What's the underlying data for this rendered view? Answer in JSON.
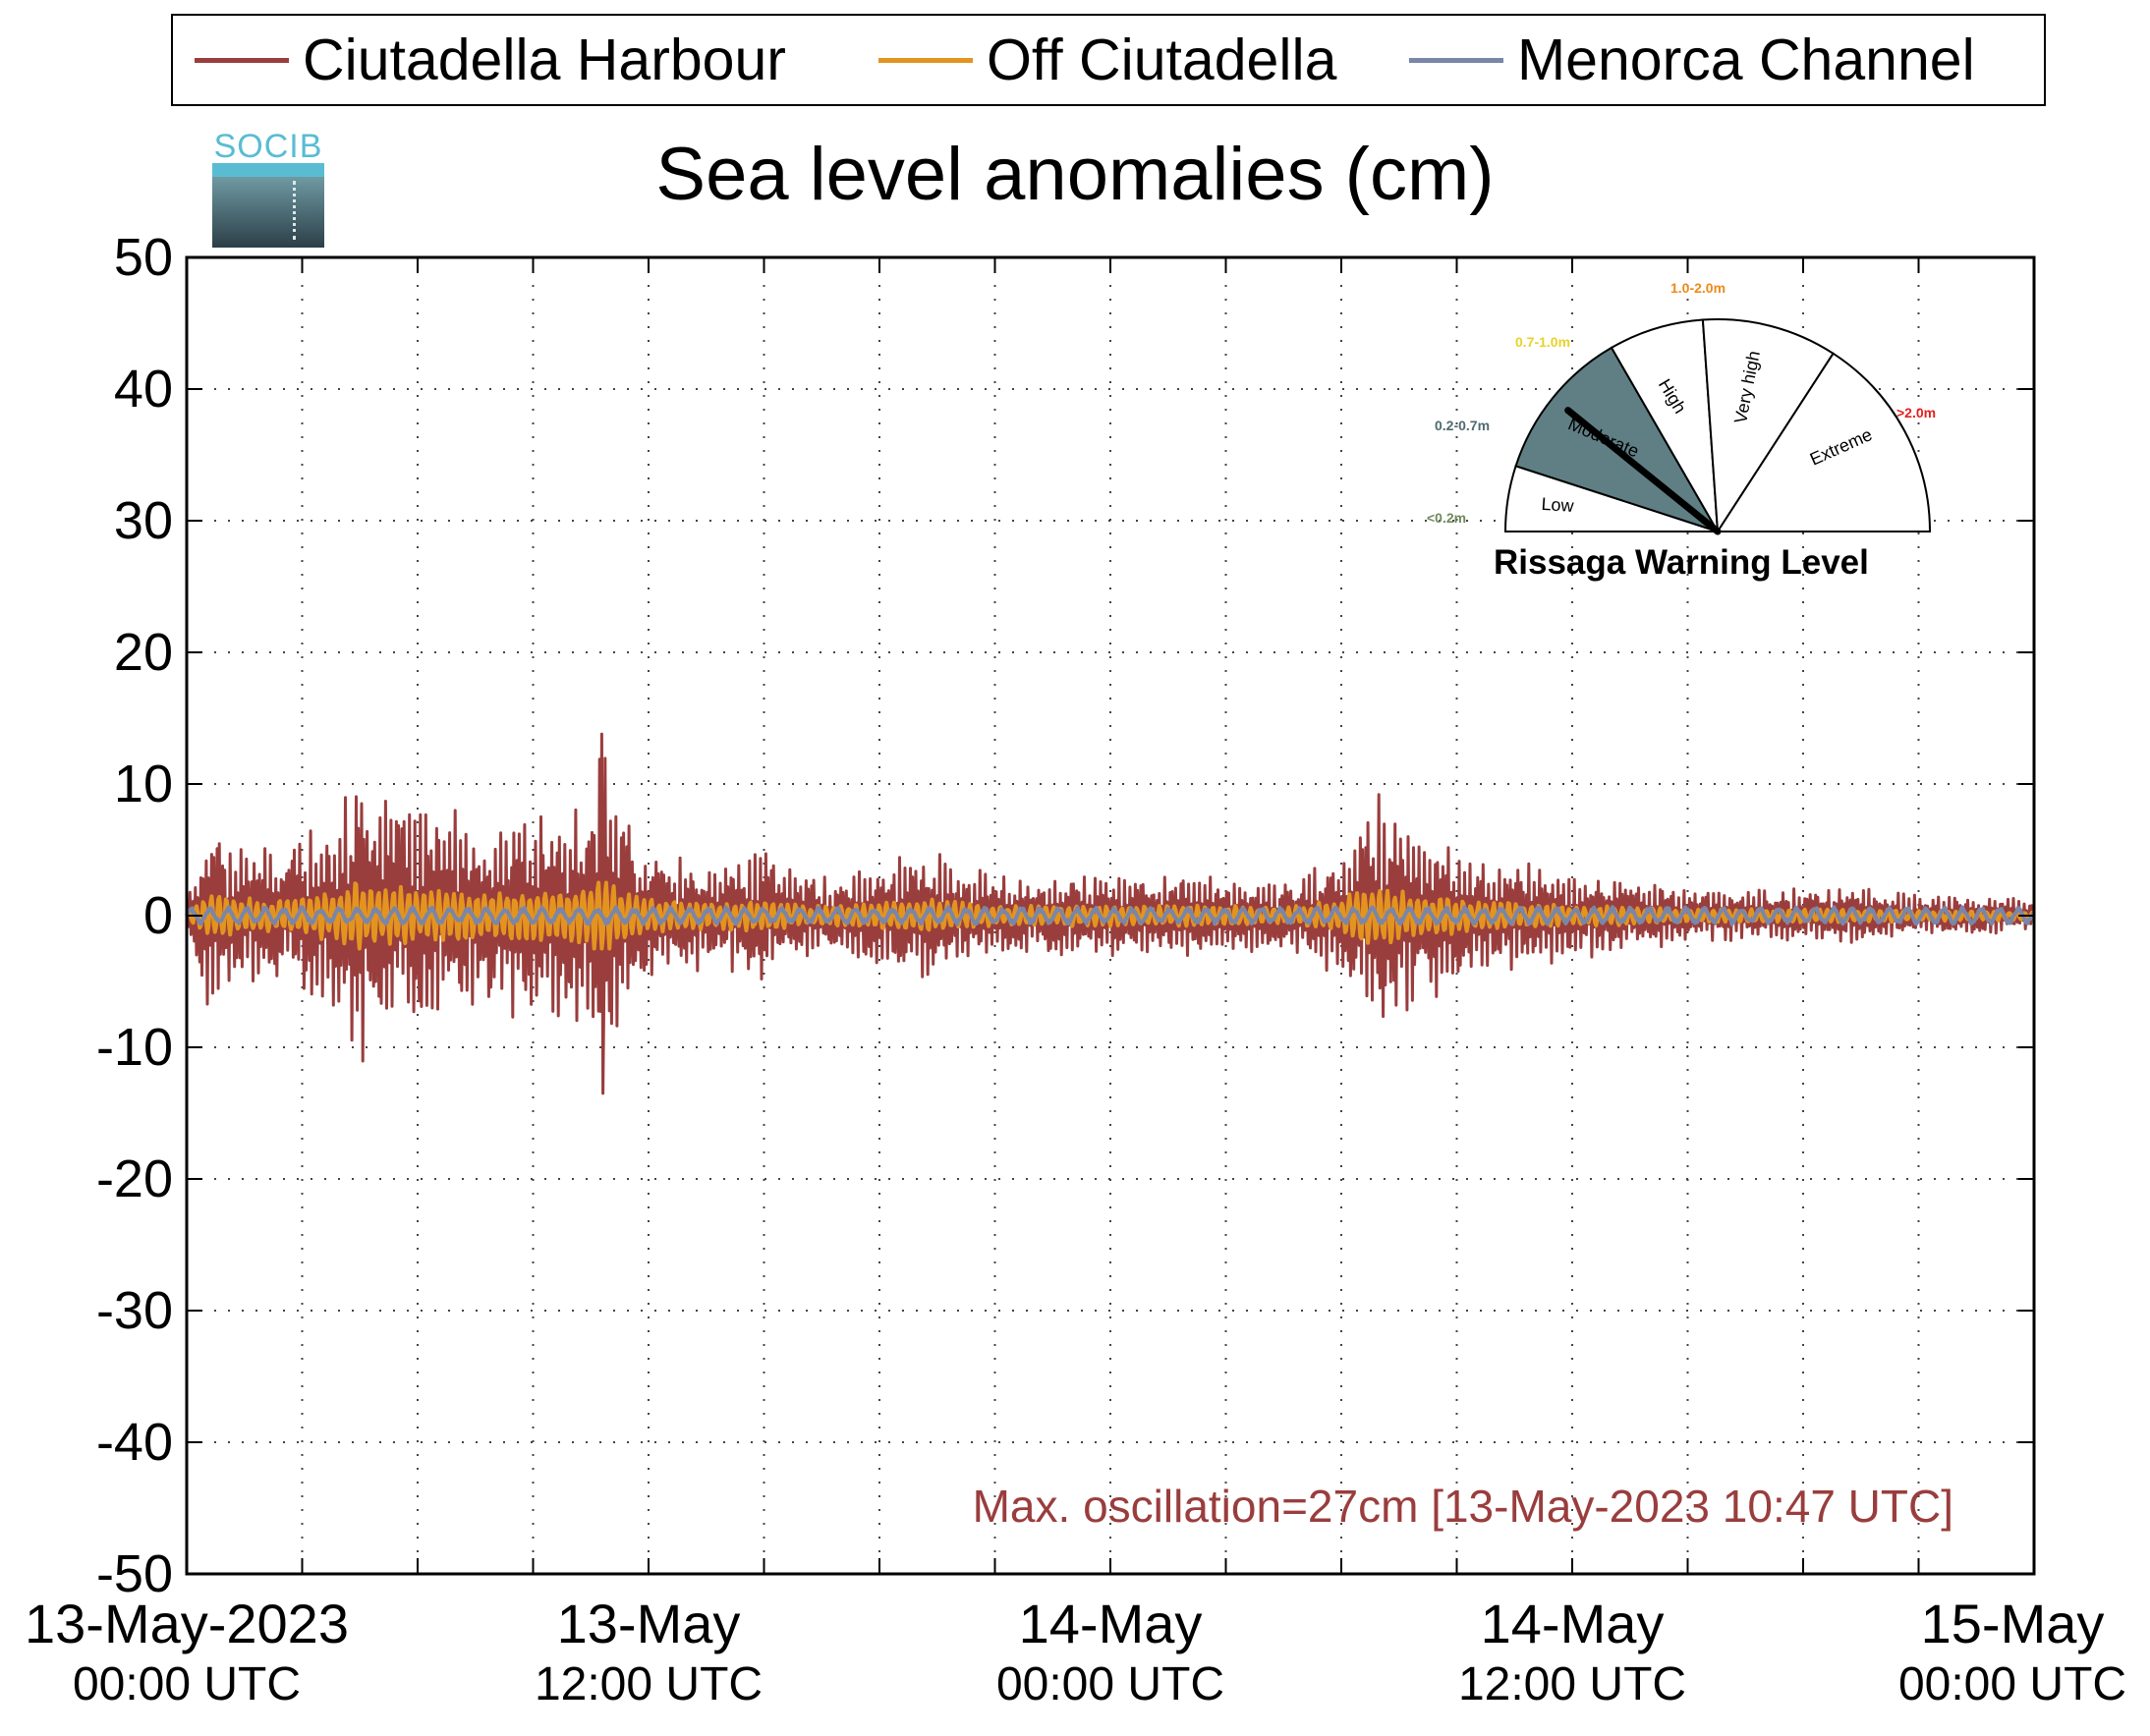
{
  "chart_data": {
    "type": "line",
    "title": "Sea level anomalies (cm)",
    "xlabel": "",
    "ylabel": "",
    "x_range": [
      "2023-05-13T00:00Z",
      "2023-05-15T00:00Z"
    ],
    "ylim": [
      -50,
      50
    ],
    "yticks": [
      "50",
      "40",
      "30",
      "20",
      "10",
      "0",
      "-10",
      "-20",
      "-30",
      "-40",
      "-50"
    ],
    "xticks": [
      {
        "line1": "13-May-2023",
        "line2": "00:00 UTC"
      },
      {
        "line1": "13-May",
        "line2": "12:00 UTC"
      },
      {
        "line1": "14-May",
        "line2": "00:00 UTC"
      },
      {
        "line1": "14-May",
        "line2": "12:00 UTC"
      },
      {
        "line1": "15-May",
        "line2": "00:00 UTC"
      }
    ],
    "grid": true,
    "legend_position": "top",
    "series": [
      {
        "name": "Ciutadella Harbour",
        "color": "#9a3d3d",
        "envelope_hours": [
          0,
          0.6,
          1,
          2,
          2.6,
          3,
          4,
          4.5,
          4.7,
          5,
          6,
          7,
          8,
          9,
          10,
          10.5,
          10.8,
          11.2,
          12,
          13,
          14,
          15,
          16,
          17,
          18,
          19,
          20,
          21,
          22,
          23,
          24,
          25,
          26,
          27,
          28,
          29,
          30,
          30.6,
          31,
          32,
          32.6,
          33,
          34,
          35,
          36,
          37,
          38,
          39,
          40,
          41,
          42,
          43,
          44,
          45,
          46,
          47,
          48
        ],
        "envelope_cm": [
          1,
          7.5,
          6,
          5,
          5,
          6,
          8,
          12,
          9,
          9,
          8,
          8,
          7,
          8,
          8,
          9,
          14,
          9,
          5,
          4,
          4,
          5,
          3,
          3,
          4,
          5,
          4,
          3,
          3,
          3,
          3,
          3,
          3,
          3,
          2.5,
          3,
          5,
          8.5,
          9.5,
          6,
          6,
          5,
          4,
          4,
          3,
          3,
          2.5,
          2,
          2,
          2,
          2,
          2,
          2,
          1.5,
          1.5,
          1.5,
          1
        ],
        "peak_max_cm": 13.8,
        "peak_min_cm": -13.5,
        "peak_hour": 10.8
      },
      {
        "name": "Off Ciutadella",
        "color": "#e3941f",
        "typical_amplitude_cm": 1.2,
        "peak_cm": [
          2.5,
          -2.5
        ]
      },
      {
        "name": "Menorca Channel",
        "color": "#7a86a8",
        "typical_amplitude_cm": 0.6
      }
    ]
  },
  "annotation": "Max. oscillation=27cm [13-May-2023 10:47 UTC]",
  "gauge": {
    "title": "Rissaga Warning Level",
    "needle_level": "Moderate",
    "sectors": [
      {
        "label": "Low",
        "range": "<0.2m",
        "range_color": "#6f8a5c",
        "fill": "#ffffff"
      },
      {
        "label": "Moderate",
        "range": "0.2-0.7m",
        "range_color": "#4f6a72",
        "fill": "#5f7f84"
      },
      {
        "label": "High",
        "range": "0.7-1.0m",
        "range_color": "#e8d22a",
        "fill": "#ffffff"
      },
      {
        "label": "Very high",
        "range": "1.0-2.0m",
        "range_color": "#ee8a1a",
        "fill": "#ffffff"
      },
      {
        "label": "Extreme",
        "range": ">2.0m",
        "range_color": "#e42020",
        "fill": "#ffffff"
      }
    ]
  },
  "logo": {
    "text": "SOCIB"
  }
}
